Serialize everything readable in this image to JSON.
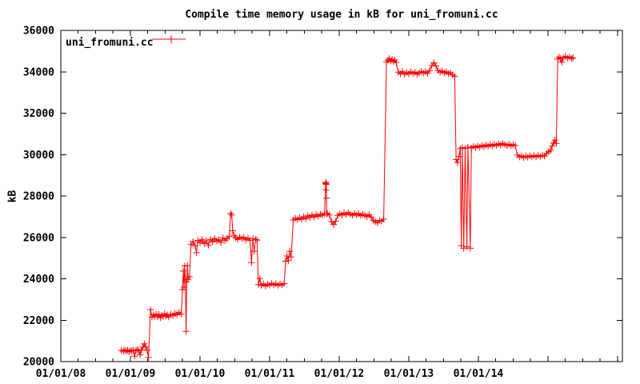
{
  "chart_data": {
    "type": "line",
    "title": "Compile time memory usage in kB for uni_fromuni.cc",
    "ylabel": "kB",
    "legend": "uni_fromuni.cc",
    "series_color": "#ff0000",
    "axis_color": "#000000",
    "ylim": [
      20000,
      36000
    ],
    "y_ticks": [
      20000,
      22000,
      24000,
      26000,
      28000,
      30000,
      32000,
      34000,
      36000
    ],
    "x_range_years": [
      0,
      8.07
    ],
    "x_major_ticks": [
      0,
      1,
      2,
      3,
      4,
      5,
      6,
      7,
      8
    ],
    "x_minor_step": 0.25,
    "x_labels": [
      {
        "t": 0,
        "label": "01/01/08"
      },
      {
        "t": 1,
        "label": "01/01/09"
      },
      {
        "t": 2,
        "label": "01/01/10"
      },
      {
        "t": 3,
        "label": "01/01/11"
      },
      {
        "t": 4,
        "label": "01/01/12"
      },
      {
        "t": 5,
        "label": "01/01/13"
      },
      {
        "t": 6,
        "label": "01/01/14"
      }
    ],
    "points": [
      [
        0.87,
        20540
      ],
      [
        0.9,
        20500
      ],
      [
        0.92,
        20560
      ],
      [
        0.94,
        20510
      ],
      [
        0.96,
        20550
      ],
      [
        0.98,
        20480
      ],
      [
        1.0,
        20540
      ],
      [
        1.02,
        20510
      ],
      [
        1.04,
        20560
      ],
      [
        1.06,
        20260
      ],
      [
        1.08,
        20540
      ],
      [
        1.1,
        20580
      ],
      [
        1.12,
        20520
      ],
      [
        1.14,
        20330
      ],
      [
        1.16,
        20560
      ],
      [
        1.18,
        20700
      ],
      [
        1.2,
        20860
      ],
      [
        1.22,
        20720
      ],
      [
        1.24,
        20550
      ],
      [
        1.26,
        20200
      ],
      [
        1.29,
        22510
      ],
      [
        1.31,
        22150
      ],
      [
        1.33,
        22260
      ],
      [
        1.35,
        22180
      ],
      [
        1.37,
        22300
      ],
      [
        1.39,
        22160
      ],
      [
        1.41,
        22280
      ],
      [
        1.43,
        22120
      ],
      [
        1.45,
        22240
      ],
      [
        1.47,
        22180
      ],
      [
        1.49,
        22300
      ],
      [
        1.51,
        22200
      ],
      [
        1.53,
        22260
      ],
      [
        1.55,
        22150
      ],
      [
        1.58,
        22280
      ],
      [
        1.61,
        22220
      ],
      [
        1.64,
        22330
      ],
      [
        1.67,
        22260
      ],
      [
        1.7,
        22380
      ],
      [
        1.73,
        22300
      ],
      [
        1.75,
        23480
      ],
      [
        1.76,
        24380
      ],
      [
        1.77,
        23600
      ],
      [
        1.78,
        24620
      ],
      [
        1.79,
        23950
      ],
      [
        1.8,
        21460
      ],
      [
        1.81,
        23850
      ],
      [
        1.82,
        24640
      ],
      [
        1.83,
        23980
      ],
      [
        1.85,
        24100
      ],
      [
        1.87,
        25650
      ],
      [
        1.9,
        25800
      ],
      [
        1.93,
        25600
      ],
      [
        1.95,
        25260
      ],
      [
        1.97,
        25850
      ],
      [
        2.0,
        25750
      ],
      [
        2.03,
        25900
      ],
      [
        2.06,
        25700
      ],
      [
        2.09,
        25840
      ],
      [
        2.12,
        25620
      ],
      [
        2.15,
        25900
      ],
      [
        2.18,
        25780
      ],
      [
        2.21,
        25950
      ],
      [
        2.24,
        25820
      ],
      [
        2.27,
        25890
      ],
      [
        2.3,
        25760
      ],
      [
        2.33,
        25980
      ],
      [
        2.36,
        25850
      ],
      [
        2.39,
        25940
      ],
      [
        2.42,
        26050
      ],
      [
        2.44,
        27160
      ],
      [
        2.455,
        27080
      ],
      [
        2.47,
        26320
      ],
      [
        2.49,
        26100
      ],
      [
        2.51,
        25980
      ],
      [
        2.54,
        25900
      ],
      [
        2.57,
        26020
      ],
      [
        2.6,
        25940
      ],
      [
        2.63,
        26000
      ],
      [
        2.66,
        25880
      ],
      [
        2.69,
        25960
      ],
      [
        2.72,
        25860
      ],
      [
        2.74,
        24780
      ],
      [
        2.76,
        25940
      ],
      [
        2.78,
        25330
      ],
      [
        2.8,
        25900
      ],
      [
        2.82,
        25870
      ],
      [
        2.84,
        23720
      ],
      [
        2.86,
        24010
      ],
      [
        2.88,
        23680
      ],
      [
        2.91,
        23760
      ],
      [
        2.94,
        23650
      ],
      [
        2.97,
        23740
      ],
      [
        3.0,
        23690
      ],
      [
        3.03,
        23780
      ],
      [
        3.06,
        23700
      ],
      [
        3.09,
        23760
      ],
      [
        3.12,
        23680
      ],
      [
        3.15,
        23750
      ],
      [
        3.18,
        23700
      ],
      [
        3.21,
        23770
      ],
      [
        3.23,
        24850
      ],
      [
        3.25,
        25100
      ],
      [
        3.27,
        24880
      ],
      [
        3.29,
        25330
      ],
      [
        3.31,
        25060
      ],
      [
        3.34,
        26840
      ],
      [
        3.37,
        26920
      ],
      [
        3.4,
        26860
      ],
      [
        3.43,
        26950
      ],
      [
        3.46,
        26880
      ],
      [
        3.49,
        27000
      ],
      [
        3.52,
        26900
      ],
      [
        3.55,
        27050
      ],
      [
        3.58,
        26960
      ],
      [
        3.61,
        27080
      ],
      [
        3.64,
        26980
      ],
      [
        3.67,
        27100
      ],
      [
        3.7,
        27020
      ],
      [
        3.73,
        27120
      ],
      [
        3.76,
        27060
      ],
      [
        3.79,
        27150
      ],
      [
        3.805,
        28600
      ],
      [
        3.808,
        28660
      ],
      [
        3.81,
        28640
      ],
      [
        3.812,
        28300
      ],
      [
        3.815,
        28560
      ],
      [
        3.818,
        27900
      ],
      [
        3.82,
        27160
      ],
      [
        3.83,
        27150
      ],
      [
        3.86,
        27080
      ],
      [
        3.89,
        26760
      ],
      [
        3.92,
        26620
      ],
      [
        3.95,
        26780
      ],
      [
        3.98,
        27060
      ],
      [
        4.01,
        27140
      ],
      [
        4.04,
        27080
      ],
      [
        4.07,
        27180
      ],
      [
        4.1,
        27100
      ],
      [
        4.13,
        27200
      ],
      [
        4.16,
        27120
      ],
      [
        4.19,
        27060
      ],
      [
        4.22,
        27160
      ],
      [
        4.25,
        27080
      ],
      [
        4.28,
        27150
      ],
      [
        4.31,
        27040
      ],
      [
        4.34,
        27120
      ],
      [
        4.37,
        27060
      ],
      [
        4.4,
        27000
      ],
      [
        4.43,
        27100
      ],
      [
        4.46,
        26980
      ],
      [
        4.49,
        26820
      ],
      [
        4.52,
        26760
      ],
      [
        4.55,
        26700
      ],
      [
        4.58,
        26820
      ],
      [
        4.61,
        26780
      ],
      [
        4.64,
        26880
      ],
      [
        4.68,
        34470
      ],
      [
        4.7,
        34560
      ],
      [
        4.72,
        34640
      ],
      [
        4.74,
        34520
      ],
      [
        4.76,
        34600
      ],
      [
        4.78,
        34480
      ],
      [
        4.8,
        34570
      ],
      [
        4.82,
        34450
      ],
      [
        4.85,
        33980
      ],
      [
        4.88,
        33900
      ],
      [
        4.91,
        34020
      ],
      [
        4.94,
        33880
      ],
      [
        4.97,
        33960
      ],
      [
        5.0,
        33900
      ],
      [
        5.03,
        34000
      ],
      [
        5.06,
        33920
      ],
      [
        5.09,
        33980
      ],
      [
        5.12,
        33880
      ],
      [
        5.15,
        33950
      ],
      [
        5.18,
        34020
      ],
      [
        5.21,
        33940
      ],
      [
        5.24,
        34000
      ],
      [
        5.27,
        33920
      ],
      [
        5.3,
        34060
      ],
      [
        5.33,
        34300
      ],
      [
        5.36,
        34440
      ],
      [
        5.39,
        34280
      ],
      [
        5.42,
        34060
      ],
      [
        5.45,
        33980
      ],
      [
        5.48,
        34040
      ],
      [
        5.51,
        33940
      ],
      [
        5.54,
        34000
      ],
      [
        5.57,
        33900
      ],
      [
        5.6,
        33960
      ],
      [
        5.63,
        33850
      ],
      [
        5.66,
        33780
      ],
      [
        5.68,
        29760
      ],
      [
        5.7,
        29620
      ],
      [
        5.72,
        29900
      ],
      [
        5.74,
        30280
      ],
      [
        5.755,
        25600
      ],
      [
        5.77,
        30340
      ],
      [
        5.79,
        25480
      ],
      [
        5.81,
        30300
      ],
      [
        5.835,
        25550
      ],
      [
        5.85,
        30360
      ],
      [
        5.885,
        25480
      ],
      [
        5.9,
        30320
      ],
      [
        5.93,
        30400
      ],
      [
        5.96,
        30340
      ],
      [
        5.99,
        30420
      ],
      [
        6.02,
        30360
      ],
      [
        6.05,
        30440
      ],
      [
        6.08,
        30380
      ],
      [
        6.11,
        30460
      ],
      [
        6.14,
        30400
      ],
      [
        6.17,
        30480
      ],
      [
        6.2,
        30420
      ],
      [
        6.23,
        30500
      ],
      [
        6.26,
        30440
      ],
      [
        6.29,
        30520
      ],
      [
        6.32,
        30460
      ],
      [
        6.35,
        30540
      ],
      [
        6.38,
        30480
      ],
      [
        6.41,
        30440
      ],
      [
        6.44,
        30500
      ],
      [
        6.47,
        30420
      ],
      [
        6.5,
        30480
      ],
      [
        6.53,
        30440
      ],
      [
        6.56,
        29980
      ],
      [
        6.59,
        29880
      ],
      [
        6.62,
        29940
      ],
      [
        6.65,
        29860
      ],
      [
        6.68,
        29920
      ],
      [
        6.71,
        29870
      ],
      [
        6.74,
        29940
      ],
      [
        6.77,
        29880
      ],
      [
        6.8,
        29950
      ],
      [
        6.83,
        29890
      ],
      [
        6.86,
        29960
      ],
      [
        6.89,
        29900
      ],
      [
        6.92,
        29970
      ],
      [
        6.95,
        29930
      ],
      [
        6.98,
        30060
      ],
      [
        7.01,
        30140
      ],
      [
        7.04,
        30210
      ],
      [
        7.06,
        30420
      ],
      [
        7.08,
        30560
      ],
      [
        7.1,
        30700
      ],
      [
        7.12,
        30540
      ],
      [
        7.14,
        34620
      ],
      [
        7.16,
        34700
      ],
      [
        7.18,
        34640
      ],
      [
        7.2,
        34460
      ],
      [
        7.22,
        34680
      ],
      [
        7.25,
        34740
      ],
      [
        7.28,
        34660
      ],
      [
        7.31,
        34720
      ],
      [
        7.34,
        34640
      ],
      [
        7.36,
        34680
      ]
    ]
  }
}
